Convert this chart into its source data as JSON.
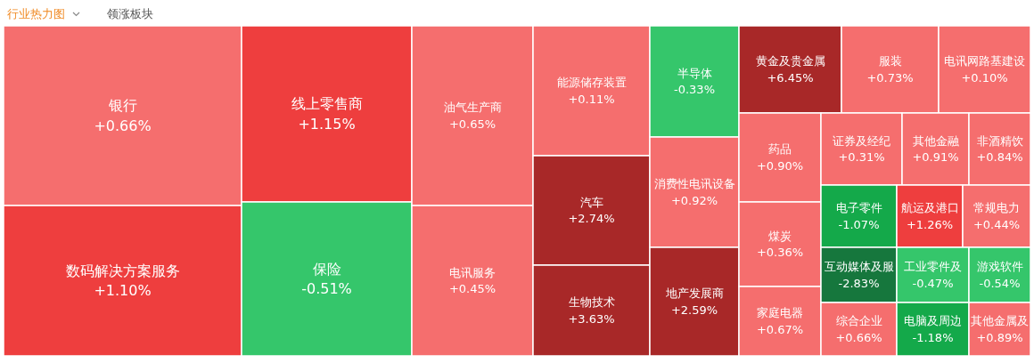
{
  "chart_data": {
    "type": "other",
    "title": "行业热力图",
    "subtitle": "领涨板块",
    "categories": [
      "银行",
      "数码解决方案服务",
      "线上零售商",
      "保险",
      "油气生产商",
      "电讯服务",
      "能源储存装置",
      "汽车",
      "生物技术",
      "半导体",
      "消费性电讯设备",
      "地产发展商",
      "黄金及贵金属",
      "服装",
      "电讯网路基建设",
      "药品",
      "煤炭",
      "家庭电器",
      "证券及经纪",
      "其他金融",
      "非酒精饮",
      "电子零件",
      "航运及港口",
      "常规电力",
      "互动媒体及服",
      "工业零件及",
      "游戏软件",
      "综合企业",
      "电脑及周边",
      "其他金属及"
    ],
    "values": [
      0.66,
      1.1,
      1.15,
      -0.51,
      0.65,
      0.45,
      0.11,
      2.74,
      3.63,
      -0.33,
      0.92,
      2.59,
      6.45,
      0.73,
      0.1,
      0.9,
      0.36,
      0.67,
      0.31,
      0.91,
      0.84,
      -1.07,
      1.26,
      0.44,
      -2.83,
      -0.47,
      -0.54,
      0.66,
      -1.18,
      0.89
    ],
    "value_labels": [
      "+0.66%",
      "+1.10%",
      "+1.15%",
      "-0.51%",
      "+0.65%",
      "+0.45%",
      "+0.11%",
      "+2.74%",
      "+3.63%",
      "-0.33%",
      "+0.92%",
      "+2.59%",
      "+6.45%",
      "+0.73%",
      "+0.10%",
      "+0.90%",
      "+0.36%",
      "+0.67%",
      "+0.31%",
      "+0.91%",
      "+0.84%",
      "-1.07%",
      "+1.26%",
      "+0.44%",
      "-2.83%",
      "-0.47%",
      "-0.54%",
      "+0.66%",
      "-1.18%",
      "+0.89%"
    ]
  }
}
